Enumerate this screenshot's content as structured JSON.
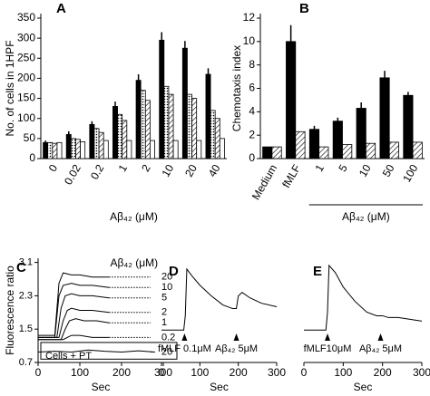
{
  "chart_data": [
    {
      "type": "bar",
      "panel": "A",
      "y_label": "No. of cells in 1HPF",
      "x_label": "Aβ₄₂ (μM)",
      "categories": [
        "0",
        "0.02",
        "0.2",
        "1",
        "2",
        "10",
        "20",
        "40"
      ],
      "ylim": [
        0,
        350
      ],
      "yticks": [
        0,
        50,
        100,
        150,
        200,
        250,
        300,
        350
      ],
      "series": [
        {
          "color": "#000000",
          "pattern": "solid",
          "values": [
            40,
            60,
            85,
            130,
            195,
            295,
            275,
            210
          ],
          "errors": [
            5,
            8,
            8,
            12,
            15,
            20,
            18,
            15
          ]
        },
        {
          "color": "#000000",
          "pattern": "dots",
          "values": [
            40,
            50,
            75,
            110,
            170,
            180,
            160,
            120
          ]
        },
        {
          "color": "#000000",
          "pattern": "hatch",
          "values": [
            38,
            48,
            65,
            95,
            145,
            160,
            150,
            100
          ]
        },
        {
          "color": "#000000",
          "pattern": "blank",
          "values": [
            40,
            42,
            45,
            45,
            45,
            45,
            45,
            50
          ]
        }
      ]
    },
    {
      "type": "bar",
      "panel": "B",
      "y_label": "Chemotaxis index",
      "x_label": "Aβ₄₂ (μM)",
      "categories": [
        "Medium",
        "fMLF",
        "1",
        "5",
        "10",
        "50",
        "100"
      ],
      "ylim": [
        0,
        12
      ],
      "yticks": [
        0,
        2,
        4,
        6,
        8,
        10,
        12
      ],
      "series": [
        {
          "color": "#000000",
          "pattern": "solid",
          "values": [
            1,
            10,
            2.5,
            3.2,
            4.3,
            6.9,
            5.4
          ],
          "errors": [
            0,
            1.4,
            0.3,
            0.3,
            0.5,
            0.6,
            0.3
          ]
        },
        {
          "color": "#000000",
          "pattern": "hatch",
          "values": [
            1,
            2.3,
            1,
            1.2,
            1.3,
            1.4,
            1.4
          ]
        }
      ]
    },
    {
      "type": "line",
      "panel": "C",
      "y_label": "Fluorescence ratio",
      "x_label": "Sec",
      "title": "Aβ₄₂ (μM)",
      "box_label": "Cells + PT",
      "xlim": [
        0,
        300
      ],
      "xticks": [
        0,
        100,
        200,
        300
      ],
      "ylim": [
        0.7,
        3.2
      ],
      "yticks": [
        0.7,
        1.5,
        2.3,
        3.1
      ],
      "series": [
        {
          "name": "20",
          "color": "#000000",
          "x": [
            0,
            40,
            50,
            60,
            80,
            100,
            130,
            170
          ],
          "values": [
            1.35,
            1.35,
            2.6,
            2.85,
            2.8,
            2.8,
            2.75,
            2.75
          ]
        },
        {
          "name": "10",
          "color": "#000000",
          "x": [
            0,
            40,
            50,
            60,
            80,
            100,
            130,
            170
          ],
          "values": [
            1.3,
            1.3,
            2.3,
            2.55,
            2.6,
            2.55,
            2.55,
            2.5
          ]
        },
        {
          "name": "5",
          "color": "#000000",
          "x": [
            0,
            45,
            55,
            65,
            80,
            100,
            130,
            170
          ],
          "values": [
            1.3,
            1.3,
            2.0,
            2.3,
            2.35,
            2.3,
            2.3,
            2.25
          ]
        },
        {
          "name": "2",
          "color": "#000000",
          "x": [
            0,
            50,
            60,
            70,
            80,
            100,
            130,
            170
          ],
          "values": [
            1.3,
            1.3,
            1.7,
            1.95,
            2.0,
            1.95,
            1.95,
            1.9
          ]
        },
        {
          "name": "1",
          "color": "#000000",
          "x": [
            0,
            55,
            65,
            75,
            90,
            110,
            140,
            170
          ],
          "values": [
            1.25,
            1.25,
            1.5,
            1.7,
            1.75,
            1.7,
            1.7,
            1.65
          ]
        },
        {
          "name": "0.2",
          "color": "#000000",
          "x": [
            0,
            60,
            80,
            100,
            130,
            170
          ],
          "values": [
            1.25,
            1.25,
            1.35,
            1.35,
            1.3,
            1.3
          ]
        },
        {
          "name": "20",
          "color": "#000000",
          "x": [
            0,
            40,
            80,
            120,
            160,
            200,
            240,
            280
          ],
          "values": [
            0.95,
            0.97,
            0.95,
            1.0,
            0.97,
            0.95,
            0.98,
            0.95
          ]
        }
      ]
    },
    {
      "type": "line",
      "panel": "D",
      "x_label": "Sec",
      "xlim": [
        0,
        300
      ],
      "xticks": [
        0,
        100,
        200,
        300
      ],
      "ylim": [
        0.3,
        3.2
      ],
      "series": [
        {
          "color": "#000000",
          "x": [
            0,
            40,
            58,
            62,
            66,
            80,
            100,
            130,
            160,
            185,
            195,
            200,
            210,
            230,
            260,
            300
          ],
          "values": [
            1.2,
            1.2,
            1.2,
            1.6,
            2.9,
            2.7,
            2.45,
            2.15,
            1.9,
            1.8,
            1.8,
            2.15,
            2.25,
            2.1,
            1.95,
            1.85
          ]
        }
      ],
      "annotations": [
        {
          "text": "fMLF 0.1μM",
          "x": 60
        },
        {
          "text": "Aβ₄₂ 5μM",
          "x": 195
        }
      ]
    },
    {
      "type": "line",
      "panel": "E",
      "x_label": "Sec",
      "xlim": [
        0,
        300
      ],
      "xticks": [
        0,
        100,
        200,
        300
      ],
      "ylim": [
        0.3,
        3.2
      ],
      "series": [
        {
          "color": "#000000",
          "x": [
            0,
            40,
            56,
            60,
            64,
            80,
            100,
            130,
            160,
            185,
            200,
            215,
            240,
            270,
            300
          ],
          "values": [
            1.2,
            1.2,
            1.2,
            1.7,
            3.0,
            2.8,
            2.4,
            2.0,
            1.7,
            1.6,
            1.6,
            1.55,
            1.55,
            1.5,
            1.45
          ]
        }
      ],
      "annotations": [
        {
          "text": "fMLF10μM",
          "x": 60
        },
        {
          "text": "Aβ₄₂ 5μM",
          "x": 195
        }
      ]
    }
  ]
}
